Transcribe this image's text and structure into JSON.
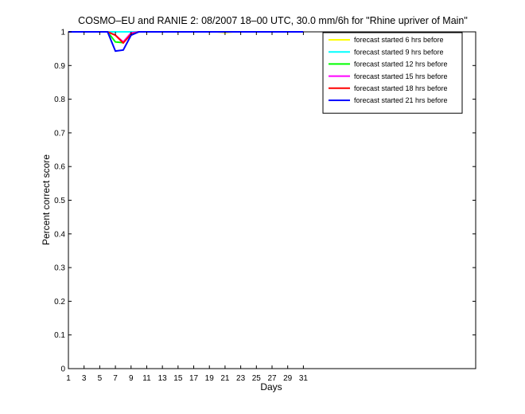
{
  "chart_data": {
    "type": "line",
    "title": "COSMO–EU and RANIE 2: 08/2007 18–00 UTC, 30.0 mm/6h for \"Rhine upriver of Main\"",
    "xlabel": "Days",
    "ylabel": "Percent correct score",
    "xlim": [
      1,
      53
    ],
    "ylim": [
      0,
      1
    ],
    "xticks": [
      1,
      3,
      5,
      7,
      9,
      11,
      13,
      15,
      17,
      19,
      21,
      23,
      25,
      27,
      29,
      31
    ],
    "xtick_labels": [
      "1",
      "3",
      "5",
      "7",
      "9",
      "11",
      "13",
      "15",
      "17",
      "19",
      "21",
      "23",
      "25",
      "27",
      "29",
      "31"
    ],
    "yticks": [
      0,
      0.1,
      0.2,
      0.3,
      0.4,
      0.5,
      0.6,
      0.7,
      0.8,
      0.9,
      1
    ],
    "ytick_labels": [
      "0",
      "0.1",
      "0.2",
      "0.3",
      "0.4",
      "0.5",
      "0.6",
      "0.7",
      "0.8",
      "0.9",
      "1"
    ],
    "grid": false,
    "legend_position": "top-right",
    "x": [
      1,
      2,
      3,
      4,
      5,
      6,
      7,
      8,
      9,
      10,
      11,
      12,
      13,
      14,
      15,
      16,
      17,
      18,
      19,
      20,
      21,
      22,
      23,
      24,
      25,
      26,
      27,
      28,
      29,
      30,
      31
    ],
    "series": [
      {
        "name": "forecast started 6 hrs before",
        "color": "#ffff00",
        "values": [
          1,
          1,
          1,
          1,
          1,
          1,
          1,
          1,
          1,
          1,
          1,
          1,
          1,
          1,
          1,
          1,
          1,
          1,
          1,
          1,
          0.998,
          1,
          1,
          1,
          1,
          1,
          1,
          1,
          1,
          1,
          1
        ]
      },
      {
        "name": "forecast started 9 hrs before",
        "color": "#00ffff",
        "values": [
          1,
          1,
          1,
          1,
          1,
          1,
          1,
          1,
          1,
          1,
          1,
          1,
          1,
          1,
          1,
          1,
          1,
          1,
          1,
          1,
          1,
          1,
          1,
          1,
          1,
          1,
          1,
          1,
          1,
          1,
          1
        ]
      },
      {
        "name": "forecast started 12 hrs before",
        "color": "#00ff00",
        "values": [
          1,
          1,
          1,
          1,
          1,
          1,
          0.97,
          0.968,
          0.995,
          1,
          1,
          1,
          1,
          1,
          1,
          1,
          1,
          1,
          1,
          1,
          1,
          1,
          1,
          1,
          1,
          1,
          1,
          1,
          1,
          1,
          1
        ]
      },
      {
        "name": "forecast started 15 hrs before",
        "color": "#ff00ff",
        "values": [
          1,
          1,
          1,
          1,
          1,
          1,
          0.99,
          0.97,
          0.997,
          1,
          1,
          1,
          1,
          1,
          1,
          1,
          1,
          1,
          1,
          1,
          1,
          1,
          1,
          1,
          1,
          1,
          1,
          1,
          1,
          1,
          1
        ]
      },
      {
        "name": "forecast started 18 hrs before",
        "color": "#ff0000",
        "values": [
          1,
          1,
          1,
          1,
          1,
          1,
          0.99,
          0.967,
          0.993,
          1,
          1,
          1,
          1,
          1,
          1,
          1,
          1,
          1,
          1,
          1,
          1,
          1,
          1,
          1,
          1,
          1,
          1,
          1,
          1,
          1,
          1
        ]
      },
      {
        "name": "forecast started 21 hrs before",
        "color": "#0000ff",
        "values": [
          1,
          1,
          1,
          1,
          1,
          1,
          0.943,
          0.946,
          0.99,
          1,
          1,
          1,
          1,
          1,
          1,
          1,
          1,
          1,
          1,
          1,
          1,
          1,
          1,
          1,
          1,
          1,
          1,
          1,
          1,
          1,
          1
        ]
      }
    ]
  }
}
